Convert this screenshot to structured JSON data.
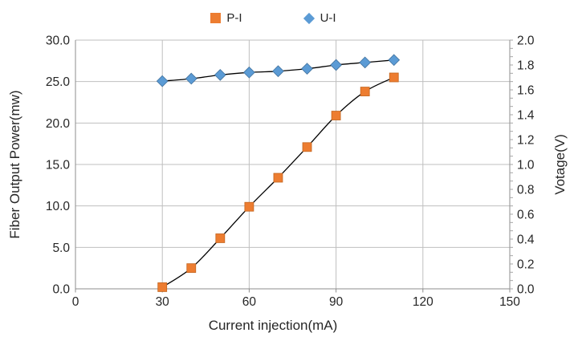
{
  "chart_data": {
    "type": "line",
    "title": "",
    "x": [
      30,
      40,
      50,
      60,
      70,
      80,
      90,
      100,
      110
    ],
    "series": [
      {
        "name": "P-I",
        "y_axis": "left",
        "marker": "square",
        "marker_color": "#ED7D31",
        "marker_border": "#C4651F",
        "line_color": "#000000",
        "values": [
          0.2,
          2.5,
          6.1,
          9.9,
          13.4,
          17.1,
          20.9,
          23.8,
          25.5
        ]
      },
      {
        "name": "U-I",
        "y_axis": "right",
        "marker": "diamond",
        "marker_color": "#5B9BD5",
        "marker_border": "#41719C",
        "line_color": "#000000",
        "values": [
          1.67,
          1.69,
          1.72,
          1.74,
          1.75,
          1.77,
          1.8,
          1.82,
          1.84
        ]
      }
    ],
    "x_axis": {
      "title": "Current injection(mA)",
      "min": 0,
      "max": 150,
      "tick_step": 30,
      "tick_labels": [
        "0",
        "30",
        "60",
        "90",
        "120",
        "150"
      ]
    },
    "y_axis_left": {
      "title": "Fiber Output Power(mw)",
      "min": 0,
      "max": 30,
      "tick_step": 5,
      "tick_labels": [
        "0.0",
        "5.0",
        "10.0",
        "15.0",
        "20.0",
        "25.0",
        "30.0"
      ]
    },
    "y_axis_right": {
      "title": "Votage(V)",
      "min": 0,
      "max": 2,
      "tick_step": 0.2,
      "tick_labels": [
        "0.0",
        "0.2",
        "0.4",
        "0.6",
        "0.8",
        "1.0",
        "1.2",
        "1.4",
        "1.6",
        "1.8",
        "2.0"
      ],
      "minor_tick_count": 30
    },
    "legend_position": "top",
    "grid": true,
    "colors": {
      "background": "#ffffff",
      "gridline": "#BFBFBF",
      "axis_line": "#8C8C8C",
      "minor_tick": "#A6A6A6",
      "label_text": "#262626"
    }
  }
}
